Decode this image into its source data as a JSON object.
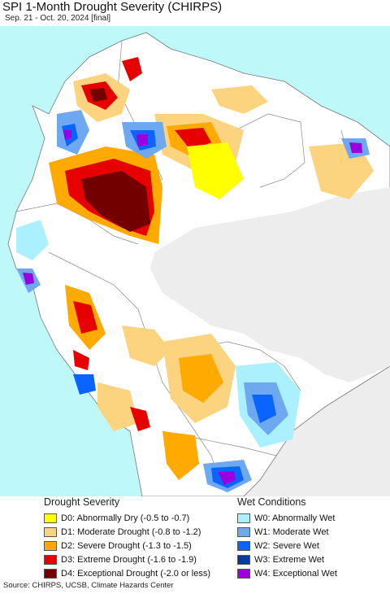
{
  "header": {
    "title": "SPI 1-Month Drought Severity (CHIRPS)",
    "subtitle": "Sep. 21 - Oct. 20, 2024 [final]"
  },
  "colors": {
    "ocean": "#bff8f8",
    "land": "#ffffff",
    "outside": "#ededed",
    "border": "#888888"
  },
  "legend": {
    "drought_title": "Drought Severity",
    "drought_items": [
      {
        "label": "D0: Abnormally Dry (-0.5 to -0.7)",
        "color": "#ffff00"
      },
      {
        "label": "D1: Moderate Drought (-0.8 to -1.2)",
        "color": "#fcd37f"
      },
      {
        "label": "D2: Severe Drought (-1.3 to -1.5)",
        "color": "#ffaa00"
      },
      {
        "label": "D3: Extreme Drought (-1.6 to -1.9)",
        "color": "#e60000"
      },
      {
        "label": "D4: Exceptional Drought (-2.0 or less)",
        "color": "#730000"
      }
    ],
    "wet_title": "Wet Conditions",
    "wet_items": [
      {
        "label": "W0: Abnormally Wet",
        "color": "#aaf0ff"
      },
      {
        "label": "W1: Moderate Wet",
        "color": "#6ea8f0"
      },
      {
        "label": "W2: Severe Wet",
        "color": "#0a64ff"
      },
      {
        "label": "W3: Extreme Wet",
        "color": "#003ca0"
      },
      {
        "label": "W4: Exceptional Wet",
        "color": "#9900dd"
      }
    ]
  },
  "footer": {
    "source": "Source: CHIRPS, UCSB, Climate Hazards Center"
  }
}
